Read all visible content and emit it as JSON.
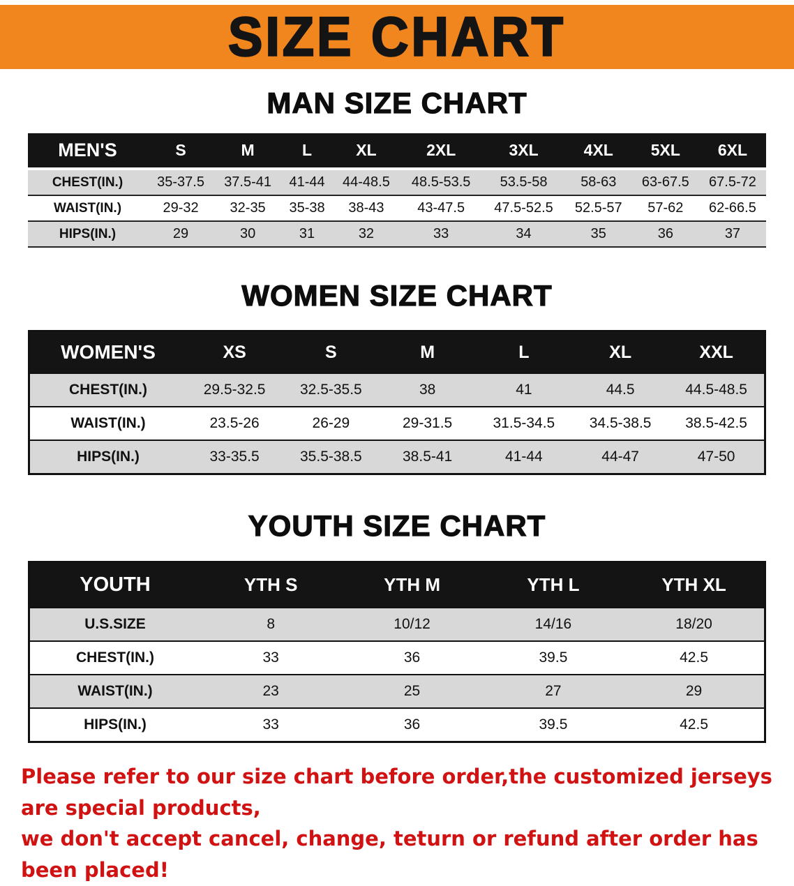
{
  "banner": {
    "title": "SIZE CHART"
  },
  "sections": [
    {
      "heading": "MAN SIZE CHART",
      "table": {
        "header": [
          "MEN'S",
          "S",
          "M",
          "L",
          "XL",
          "2XL",
          "3XL",
          "4XL",
          "5XL",
          "6XL"
        ],
        "rows": [
          [
            "CHEST(IN.)",
            "35-37.5",
            "37.5-41",
            "41-44",
            "44-48.5",
            "48.5-53.5",
            "53.5-58",
            "58-63",
            "63-67.5",
            "67.5-72"
          ],
          [
            "WAIST(IN.)",
            "29-32",
            "32-35",
            "35-38",
            "38-43",
            "43-47.5",
            "47.5-52.5",
            "52.5-57",
            "57-62",
            "62-66.5"
          ],
          [
            "HIPS(IN.)",
            "29",
            "30",
            "31",
            "32",
            "33",
            "34",
            "35",
            "36",
            "37"
          ]
        ]
      }
    },
    {
      "heading": "WOMEN SIZE CHART",
      "table": {
        "header": [
          "WOMEN'S",
          "XS",
          "S",
          "M",
          "L",
          "XL",
          "XXL"
        ],
        "rows": [
          [
            "CHEST(IN.)",
            "29.5-32.5",
            "32.5-35.5",
            "38",
            "41",
            "44.5",
            "44.5-48.5"
          ],
          [
            "WAIST(IN.)",
            "23.5-26",
            "26-29",
            "29-31.5",
            "31.5-34.5",
            "34.5-38.5",
            "38.5-42.5"
          ],
          [
            "HIPS(IN.)",
            "33-35.5",
            "35.5-38.5",
            "38.5-41",
            "41-44",
            "44-47",
            "47-50"
          ]
        ]
      }
    },
    {
      "heading": "YOUTH SIZE CHART",
      "table": {
        "header": [
          "YOUTH",
          "YTH S",
          "YTH M",
          "YTH L",
          "YTH XL"
        ],
        "rows": [
          [
            "U.S.SIZE",
            "8",
            "10/12",
            "14/16",
            "18/20"
          ],
          [
            "CHEST(IN.)",
            "33",
            "36",
            "39.5",
            "42.5"
          ],
          [
            "WAIST(IN.)",
            "23",
            "25",
            "27",
            "29"
          ],
          [
            "HIPS(IN.)",
            "33",
            "36",
            "39.5",
            "42.5"
          ]
        ]
      }
    }
  ],
  "disclaimer": {
    "lines": [
      "Please refer to our size chart before order,the customized jerseys are special products,",
      "we don't accept cancel, change, teturn or refund after order has been placed!"
    ]
  },
  "colors": {
    "banner_orange": "#F1861E",
    "header_black": "#141414",
    "row_gray": "#D8D8D8",
    "disclaimer_red": "#D01212"
  }
}
